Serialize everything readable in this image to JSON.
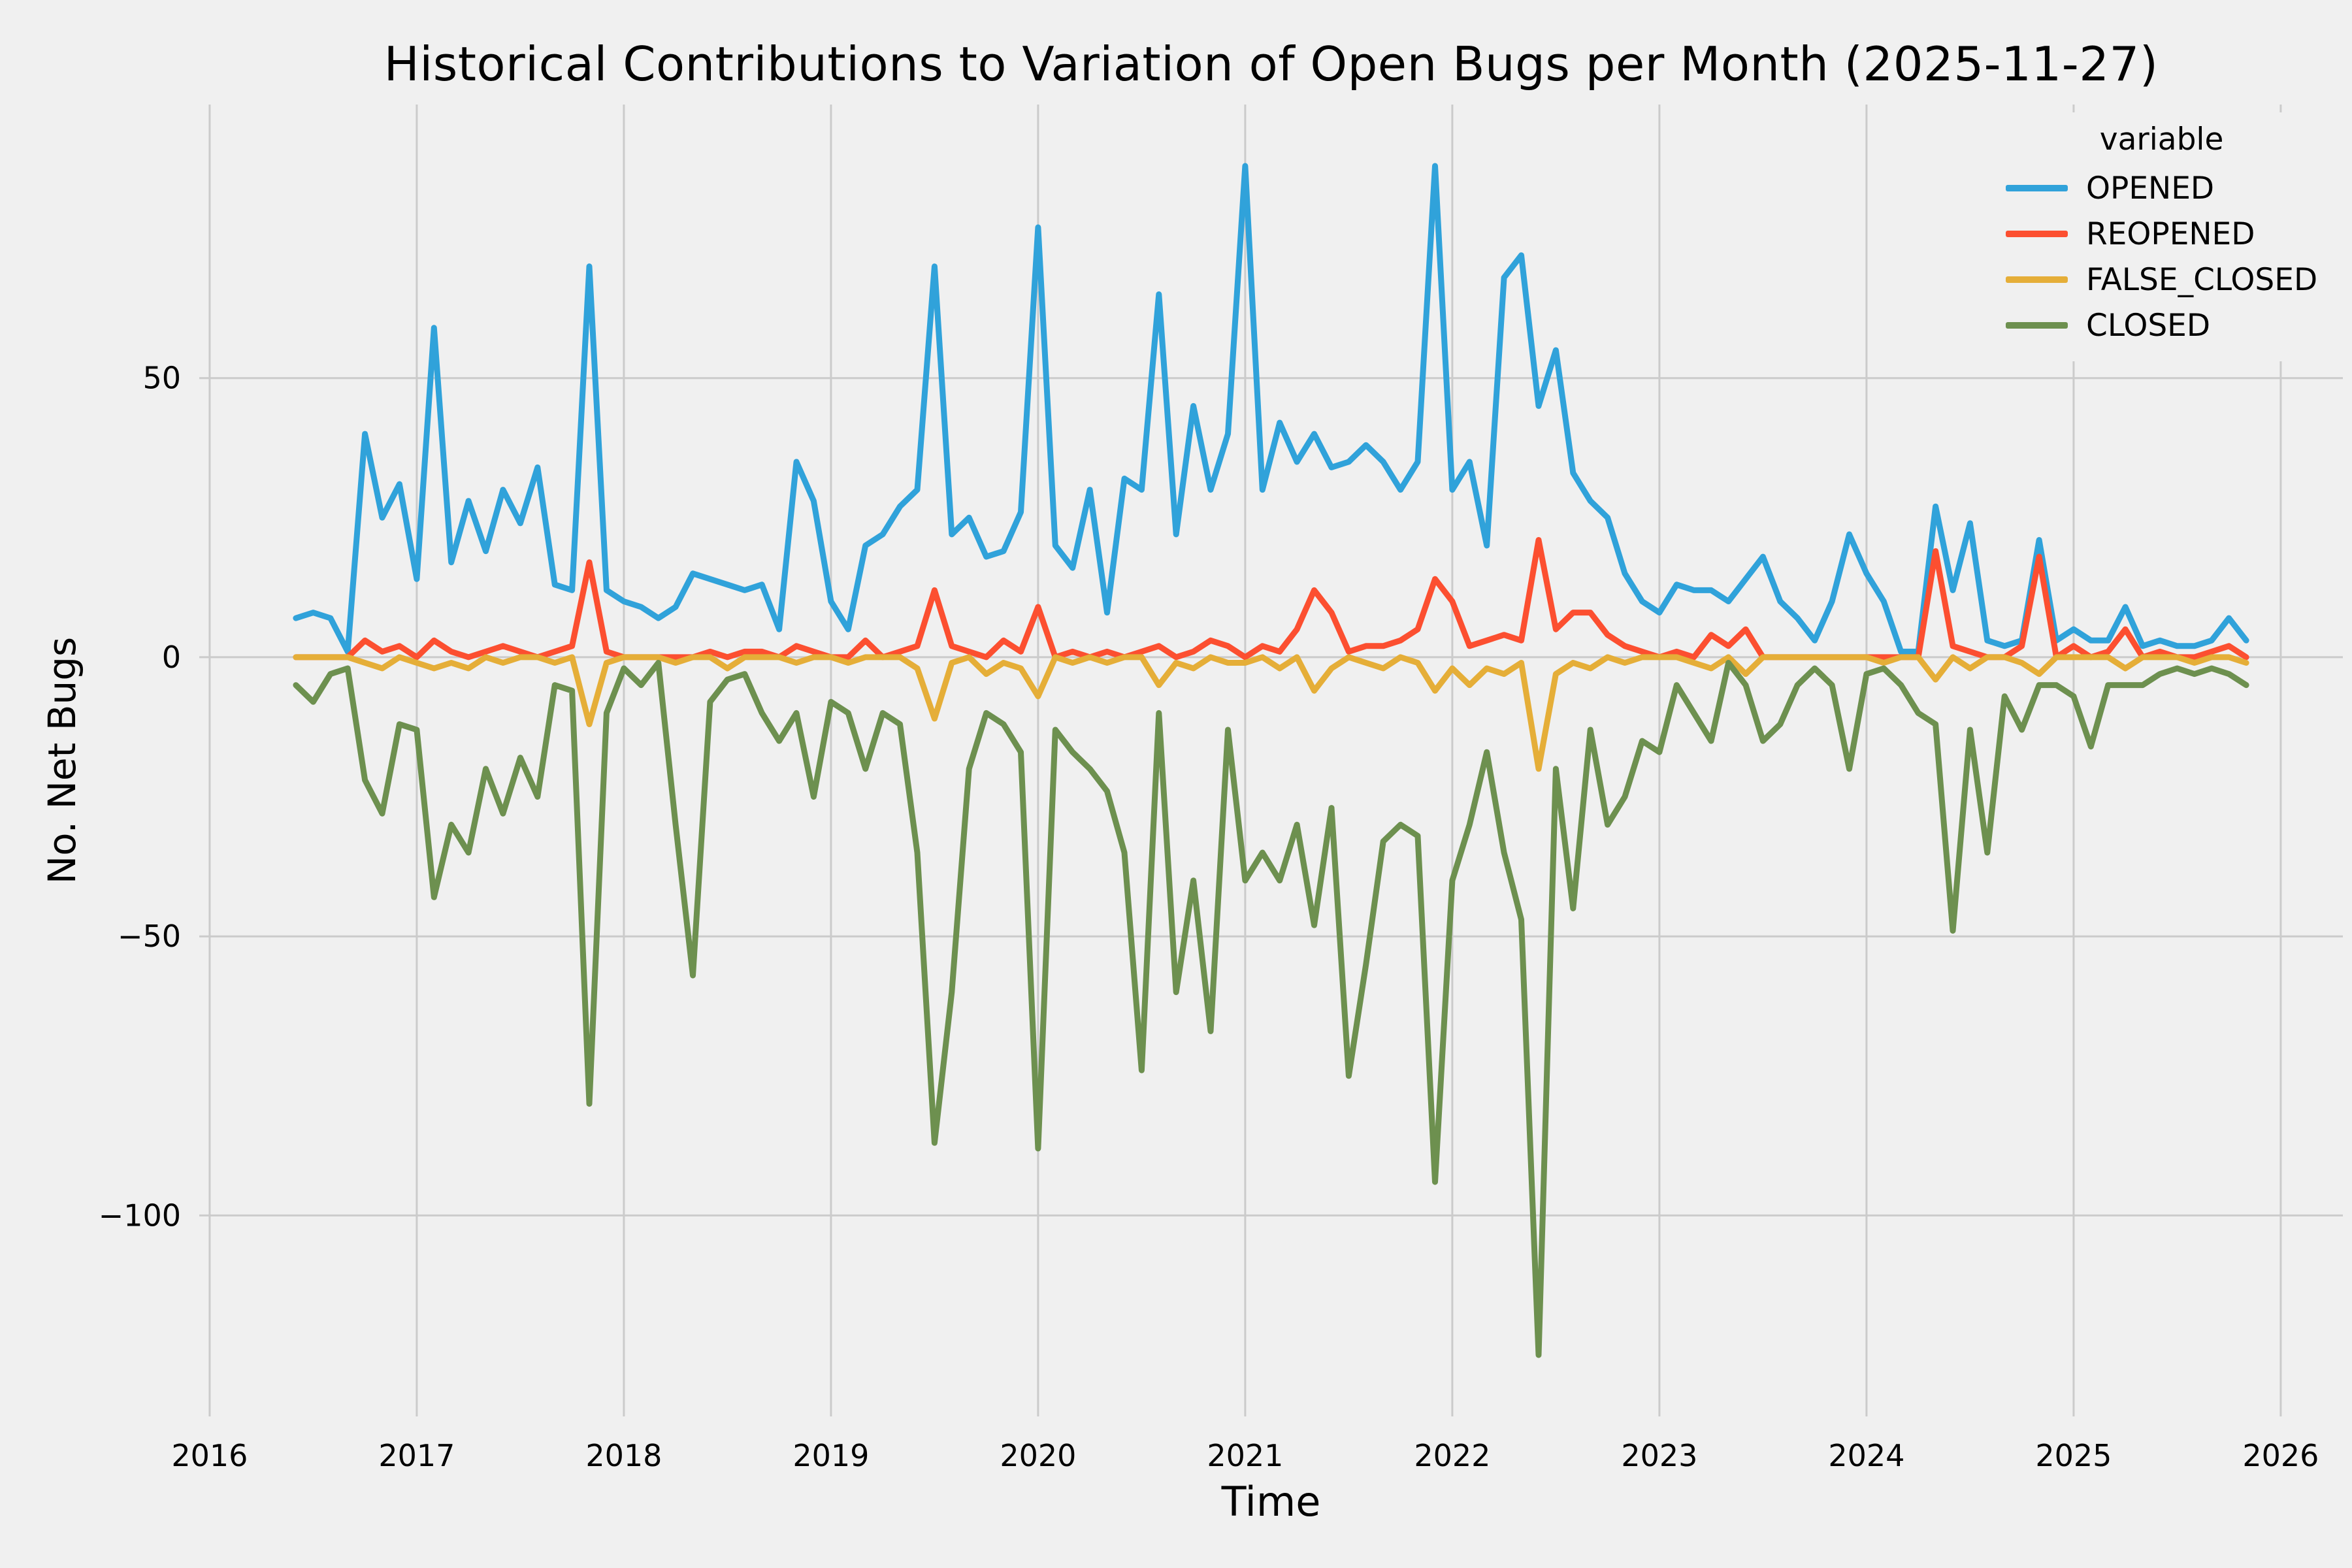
{
  "style": {
    "background": "#f0f0f0",
    "grid_color": "#cbcbcb",
    "text_color": "#000000",
    "line_width": 9
  },
  "chart_data": {
    "type": "line",
    "title": "Historical Contributions to Variation of Open Bugs per Month (2025-11-27)",
    "xlabel": "Time",
    "ylabel": "No. Net Bugs",
    "legend_title": "variable",
    "legend_position": "upper-right",
    "grid": true,
    "x_start": "2016-06",
    "x_end": "2025-11",
    "x_frequency": "monthly",
    "x_ticks": [
      2016,
      2017,
      2018,
      2019,
      2020,
      2021,
      2022,
      2023,
      2024,
      2025,
      2026
    ],
    "y_ticks": [
      -100,
      -50,
      0,
      50
    ],
    "xlim": [
      2015.95,
      2026.3
    ],
    "ylim": [
      -136,
      99
    ],
    "series": [
      {
        "name": "OPENED",
        "color": "#30a2da",
        "values": [
          7,
          8,
          7,
          1,
          40,
          25,
          31,
          14,
          59,
          17,
          28,
          19,
          30,
          24,
          34,
          13,
          12,
          70,
          12,
          10,
          9,
          7,
          9,
          15,
          14,
          13,
          12,
          13,
          5,
          35,
          28,
          10,
          5,
          20,
          22,
          27,
          30,
          70,
          22,
          25,
          18,
          19,
          26,
          77,
          20,
          16,
          30,
          8,
          32,
          30,
          65,
          22,
          45,
          30,
          40,
          88,
          30,
          42,
          35,
          40,
          34,
          35,
          38,
          35,
          30,
          35,
          88,
          30,
          35,
          20,
          68,
          72,
          45,
          55,
          33,
          28,
          25,
          15,
          10,
          8,
          13,
          12,
          12,
          10,
          14,
          18,
          10,
          7,
          3,
          10,
          22,
          15,
          10,
          1,
          1,
          27,
          12,
          24,
          3,
          2,
          3,
          21,
          3,
          5,
          3,
          3,
          9,
          2,
          3,
          2,
          2,
          3,
          7,
          3
        ]
      },
      {
        "name": "REOPENED",
        "color": "#fc4f30",
        "values": [
          0,
          0,
          0,
          0,
          3,
          1,
          2,
          0,
          3,
          1,
          0,
          1,
          2,
          1,
          0,
          1,
          2,
          17,
          1,
          0,
          0,
          0,
          0,
          0,
          1,
          0,
          1,
          1,
          0,
          2,
          1,
          0,
          0,
          3,
          0,
          1,
          2,
          12,
          2,
          1,
          0,
          3,
          1,
          9,
          0,
          1,
          0,
          1,
          0,
          1,
          2,
          0,
          1,
          3,
          2,
          0,
          2,
          1,
          5,
          12,
          8,
          1,
          2,
          2,
          3,
          5,
          14,
          10,
          2,
          3,
          4,
          3,
          21,
          5,
          8,
          8,
          4,
          2,
          1,
          0,
          1,
          0,
          4,
          2,
          5,
          0,
          0,
          0,
          0,
          0,
          0,
          0,
          0,
          0,
          0,
          19,
          2,
          1,
          0,
          0,
          2,
          18,
          0,
          2,
          0,
          1,
          5,
          0,
          1,
          0,
          0,
          1,
          2,
          0
        ]
      },
      {
        "name": "FALSE_CLOSED",
        "color": "#e5ae38",
        "values": [
          0,
          0,
          0,
          0,
          -1,
          -2,
          0,
          -1,
          -2,
          -1,
          -2,
          0,
          -1,
          0,
          0,
          -1,
          0,
          -12,
          -1,
          0,
          0,
          0,
          -1,
          0,
          0,
          -2,
          0,
          0,
          0,
          -1,
          0,
          0,
          -1,
          0,
          0,
          0,
          -2,
          -11,
          -1,
          0,
          -3,
          -1,
          -2,
          -7,
          0,
          -1,
          0,
          -1,
          0,
          0,
          -5,
          -1,
          -2,
          0,
          -1,
          -1,
          0,
          -2,
          0,
          -6,
          -2,
          0,
          -1,
          -2,
          0,
          -1,
          -6,
          -2,
          -5,
          -2,
          -3,
          -1,
          -20,
          -3,
          -1,
          -2,
          0,
          -1,
          0,
          0,
          0,
          -1,
          -2,
          0,
          -3,
          0,
          0,
          0,
          0,
          0,
          0,
          0,
          -1,
          0,
          0,
          -4,
          0,
          -2,
          0,
          0,
          -1,
          -3,
          0,
          0,
          0,
          0,
          -2,
          0,
          0,
          0,
          -1,
          0,
          0,
          -1
        ]
      },
      {
        "name": "CLOSED",
        "color": "#6d904f",
        "values": [
          -5,
          -8,
          -3,
          -2,
          -22,
          -28,
          -12,
          -13,
          -43,
          -30,
          -35,
          -20,
          -28,
          -18,
          -25,
          -5,
          -6,
          -80,
          -10,
          -2,
          -5,
          -1,
          -30,
          -57,
          -8,
          -4,
          -3,
          -10,
          -15,
          -10,
          -25,
          -8,
          -10,
          -20,
          -10,
          -12,
          -35,
          -87,
          -60,
          -20,
          -10,
          -12,
          -17,
          -88,
          -13,
          -17,
          -20,
          -24,
          -35,
          -74,
          -10,
          -60,
          -40,
          -67,
          -13,
          -40,
          -35,
          -40,
          -30,
          -48,
          -27,
          -75,
          -55,
          -33,
          -30,
          -32,
          -94,
          -40,
          -30,
          -17,
          -35,
          -47,
          -125,
          -20,
          -45,
          -13,
          -30,
          -25,
          -15,
          -17,
          -5,
          -10,
          -15,
          -1,
          -5,
          -15,
          -12,
          -5,
          -2,
          -5,
          -20,
          -3,
          -2,
          -5,
          -10,
          -12,
          -49,
          -13,
          -35,
          -7,
          -13,
          -5,
          -5,
          -7,
          -16,
          -5,
          -5,
          -5,
          -3,
          -2,
          -3,
          -2,
          -3,
          -5
        ]
      }
    ]
  }
}
